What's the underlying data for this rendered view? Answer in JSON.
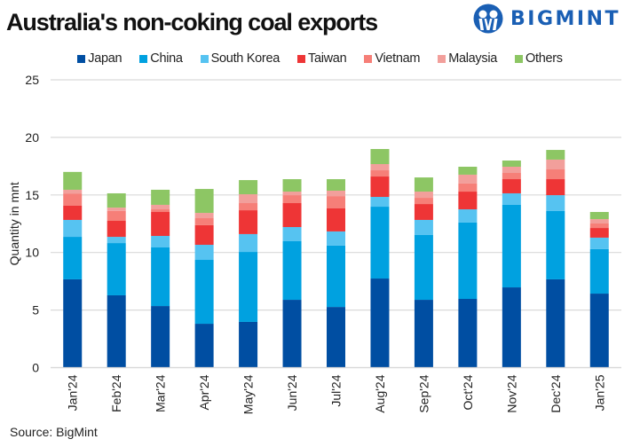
{
  "header": {
    "title": "Australia's non-coking coal exports",
    "brand": "BIGMINT",
    "brand_color": "#1a5fb4"
  },
  "source": "Source: BigMint",
  "chart_data": {
    "type": "bar",
    "stacked": true,
    "title": "Australia's non-coking coal exports",
    "xlabel": "",
    "ylabel": "Quantity in mnt",
    "ylim": [
      0,
      25
    ],
    "yticks": [
      0,
      5,
      10,
      15,
      20,
      25
    ],
    "grid": true,
    "legend_position": "top-center",
    "categories": [
      "Jan'24",
      "Feb'24",
      "Mar'24",
      "Apr'24",
      "May'24",
      "Jun'24",
      "Jul'24",
      "Aug'24",
      "Sep'24",
      "Oct'24",
      "Nov'24",
      "Dec'24",
      "Jan'25"
    ],
    "series": [
      {
        "name": "Japan",
        "color": "#004ea2",
        "values": [
          7.67,
          6.28,
          5.35,
          3.81,
          3.97,
          5.89,
          5.27,
          7.74,
          5.89,
          5.97,
          6.97,
          7.67,
          6.43
        ]
      },
      {
        "name": "China",
        "color": "#00a1e0",
        "values": [
          3.69,
          4.54,
          5.09,
          5.55,
          6.08,
          5.09,
          5.33,
          6.24,
          5.63,
          6.63,
          7.17,
          5.93,
          3.86
        ]
      },
      {
        "name": "South Korea",
        "color": "#56c3f1",
        "values": [
          1.47,
          0.54,
          1.0,
          1.31,
          1.55,
          1.23,
          1.23,
          0.85,
          1.31,
          1.15,
          1.0,
          1.38,
          1.0
        ]
      },
      {
        "name": "Taiwan",
        "color": "#ee3536",
        "values": [
          1.23,
          1.39,
          2.08,
          1.7,
          2.07,
          2.08,
          2.0,
          1.77,
          1.38,
          1.54,
          1.23,
          1.39,
          0.84
        ]
      },
      {
        "name": "Vietnam",
        "color": "#f67f78",
        "values": [
          1.04,
          0.87,
          0.23,
          0.61,
          0.62,
          0.69,
          1.07,
          0.54,
          0.54,
          0.7,
          0.54,
          0.85,
          0.39
        ]
      },
      {
        "name": "Malaysia",
        "color": "#f29f9b",
        "values": [
          0.35,
          0.28,
          0.39,
          0.46,
          0.77,
          0.31,
          0.47,
          0.54,
          0.54,
          0.77,
          0.54,
          0.85,
          0.38
        ]
      },
      {
        "name": "Others",
        "color": "#8dc664",
        "values": [
          1.55,
          1.24,
          1.31,
          2.08,
          1.23,
          1.08,
          1.0,
          1.31,
          1.23,
          0.69,
          0.54,
          0.84,
          0.62
        ]
      }
    ]
  }
}
